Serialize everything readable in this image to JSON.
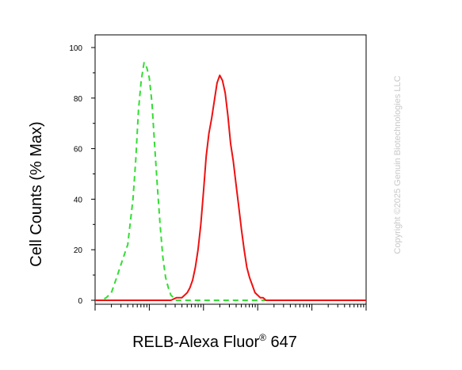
{
  "chart_data": {
    "type": "line",
    "xlabel": "RELB-Alexa Fluor",
    "xlabel_superscript": "®",
    "xlabel_suffix": " 647",
    "ylabel": "Cell Counts (% Max)",
    "xscale": "log",
    "xlim": [
      10,
      1000000
    ],
    "ylim": [
      0,
      100
    ],
    "yticks": [
      "0",
      "20",
      "40",
      "60",
      "80",
      "100"
    ],
    "grid": false,
    "watermark": "Copyright ©2025 Genuin Biotechnologies LLC",
    "series": [
      {
        "style": "dashed",
        "color": "#33dd33",
        "x": [
          10,
          13,
          16,
          20,
          25,
          32,
          40,
          50,
          56,
          63,
          71,
          80,
          90,
          100,
          112,
          125,
          141,
          158,
          178,
          200,
          224,
          251,
          282,
          316,
          355,
          400,
          447,
          501,
          631,
          1000,
          10000,
          1000000
        ],
        "y": [
          0,
          0,
          1,
          3,
          9,
          16,
          22,
          40,
          55,
          75,
          87,
          94,
          92,
          88,
          78,
          62,
          45,
          30,
          17,
          9,
          5,
          2,
          1,
          0,
          0,
          0,
          0,
          0,
          0,
          0,
          0,
          0
        ]
      },
      {
        "style": "solid",
        "color": "#ee1111",
        "x": [
          10,
          100,
          200,
          251,
          316,
          355,
          398,
          447,
          501,
          562,
          631,
          708,
          794,
          891,
          1000,
          1122,
          1259,
          1413,
          1585,
          1778,
          1995,
          2239,
          2512,
          2818,
          3162,
          3548,
          3981,
          4467,
          5012,
          5623,
          6310,
          7079,
          7943,
          8913,
          10000,
          11220,
          12589,
          14125,
          15849,
          17783,
          19953,
          22387,
          25119,
          31623,
          100000,
          1000000
        ],
        "y": [
          0,
          0,
          0,
          0,
          1,
          1,
          1,
          2,
          3,
          5,
          8,
          13,
          20,
          30,
          43,
          57,
          66,
          72,
          79,
          86,
          89,
          87,
          82,
          73,
          62,
          55,
          46,
          37,
          28,
          20,
          13,
          9,
          6,
          3,
          2,
          1,
          1,
          0,
          0,
          0,
          0,
          0,
          0,
          0,
          0,
          0
        ]
      }
    ]
  }
}
